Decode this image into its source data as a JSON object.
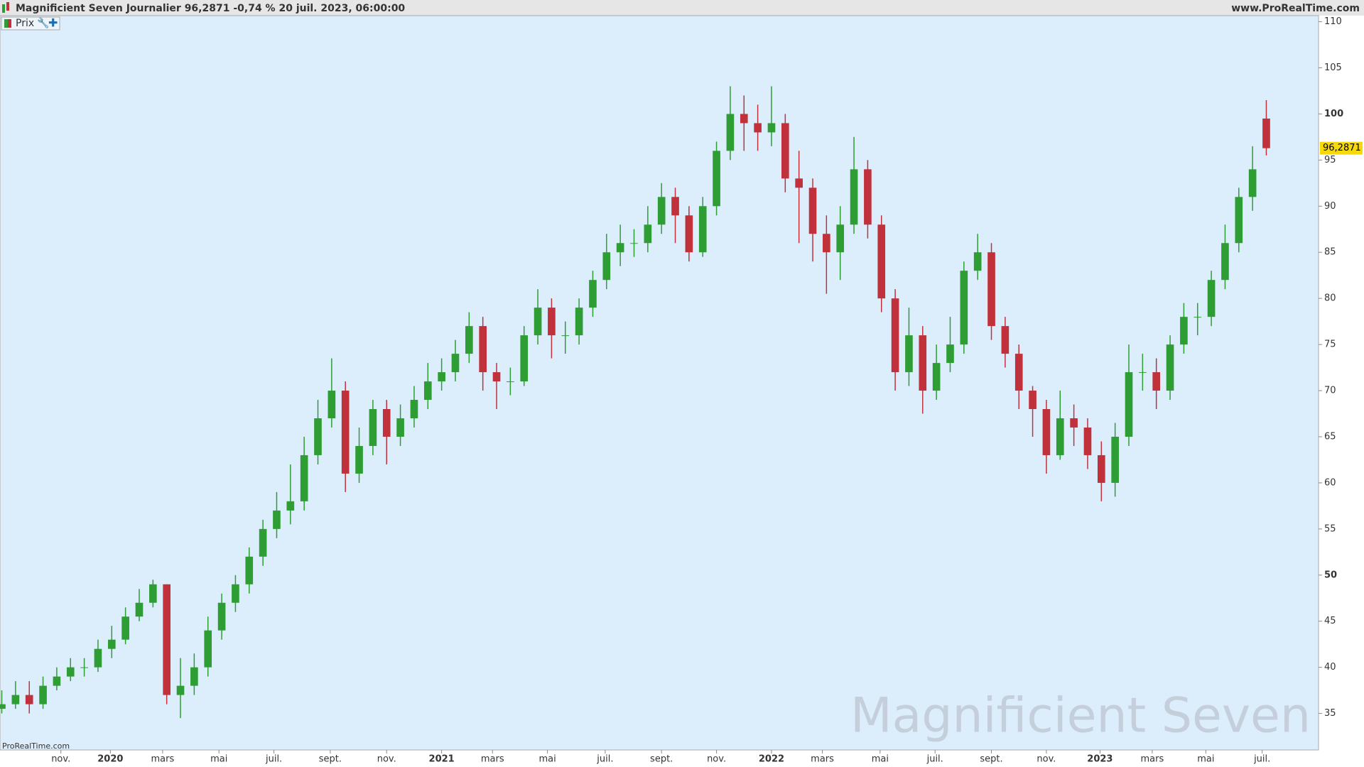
{
  "header": {
    "title": "Magnificient Seven Journalier 96,2871 -0,74 % 20 juil. 2023, 06:00:00",
    "site": "www.ProRealTime.com",
    "indicator": "Prix",
    "footer": "ProRealTime.com",
    "watermark": "Magnificient Seven"
  },
  "chart_data": {
    "type": "candlestick",
    "open": [
      35.5,
      36,
      37,
      36,
      38,
      39,
      40,
      40,
      42,
      43,
      45.5,
      47,
      49,
      37,
      38,
      40,
      44,
      47,
      49,
      52,
      55,
      57,
      58,
      63,
      67,
      70,
      61,
      64,
      68,
      65,
      67,
      69,
      71,
      72,
      74,
      77,
      72,
      71,
      71,
      76,
      79,
      76,
      76,
      79,
      82,
      85,
      86,
      86,
      88,
      91,
      89,
      85,
      90,
      96,
      100,
      99,
      98,
      99,
      93,
      92,
      87,
      85,
      88,
      94,
      88,
      80,
      72,
      76,
      70,
      73,
      75,
      83,
      85,
      77,
      74,
      70,
      68,
      63,
      67,
      66,
      63,
      60,
      65,
      72,
      72,
      70,
      75,
      78,
      78,
      82,
      86,
      91,
      99.5
    ],
    "high": [
      37.5,
      38.5,
      38.5,
      39,
      40,
      41,
      41,
      43,
      44.5,
      46.5,
      48.5,
      49.5,
      49,
      41,
      41.5,
      45.5,
      48,
      50,
      53,
      56,
      59,
      62,
      65,
      69,
      73.5,
      71,
      66,
      69,
      69,
      68.5,
      70.5,
      73,
      73.5,
      75.5,
      78.5,
      78,
      73,
      72.5,
      77,
      81,
      80,
      77.5,
      80,
      83,
      87,
      88,
      87.5,
      90,
      92.5,
      92,
      90,
      91,
      97,
      103,
      102,
      101,
      103,
      100,
      96,
      93,
      89,
      90,
      97.5,
      95,
      89,
      81,
      79,
      77,
      75,
      78,
      84,
      87,
      86,
      78,
      75,
      70.5,
      69,
      70,
      68.5,
      67,
      64.5,
      66.5,
      75,
      74,
      73.5,
      76,
      79.5,
      79.5,
      83,
      88,
      92,
      96.5,
      101.5
    ],
    "low": [
      35,
      35.5,
      35,
      35.5,
      37.5,
      38.5,
      39,
      39.5,
      41,
      42.5,
      45,
      46.5,
      36,
      34.5,
      37,
      39,
      43,
      46,
      48,
      51,
      54,
      55.5,
      57,
      62,
      66,
      59,
      60,
      63,
      62,
      64,
      66,
      68,
      70,
      71,
      73,
      70,
      68,
      69.5,
      70.5,
      75,
      73.5,
      74,
      75,
      78,
      81,
      83.5,
      84.5,
      85,
      87,
      86,
      84,
      84.5,
      89,
      95,
      96,
      96,
      96.5,
      91.5,
      86,
      84,
      80.5,
      82,
      87,
      86.5,
      78.5,
      70,
      70.5,
      67.5,
      69,
      72,
      74,
      82,
      75.5,
      72.5,
      68,
      65,
      61,
      62.5,
      64,
      61.5,
      58,
      58.5,
      64,
      70,
      68,
      69,
      74,
      76,
      77,
      81,
      85,
      89.5,
      95.5
    ],
    "close": [
      36,
      37,
      36,
      38,
      39,
      40,
      40,
      42,
      43,
      45.5,
      47,
      49,
      37,
      38,
      40,
      44,
      47,
      49,
      52,
      55,
      57,
      58,
      63,
      67,
      70,
      61,
      64,
      68,
      65,
      67,
      69,
      71,
      72,
      74,
      77,
      72,
      71,
      71,
      76,
      79,
      76,
      76,
      79,
      82,
      85,
      86,
      86,
      88,
      91,
      89,
      85,
      90,
      96,
      100,
      99,
      98,
      99,
      93,
      92,
      87,
      85,
      88,
      94,
      88,
      80,
      72,
      76,
      70,
      73,
      75,
      83,
      85,
      77,
      74,
      70,
      68,
      63,
      67,
      66,
      63,
      60,
      65,
      72,
      72,
      70,
      75,
      78,
      78,
      82,
      86,
      91,
      94,
      96.2871
    ],
    "up_color": "#2e9e34",
    "down_color": "#c0313b",
    "last_price": {
      "value": 96.2871,
      "label": "96,2871"
    },
    "xlim": [
      -0.13,
      95.8
    ],
    "xticks": [
      {
        "value": 4.3,
        "label": "nov."
      },
      {
        "value": 7.9,
        "label": "2020"
      },
      {
        "value": 11.7,
        "label": "mars"
      },
      {
        "value": 15.8,
        "label": "mai"
      },
      {
        "value": 19.8,
        "label": "juil."
      },
      {
        "value": 23.9,
        "label": "sept."
      },
      {
        "value": 28.0,
        "label": "nov."
      },
      {
        "value": 32.0,
        "label": "2021"
      },
      {
        "value": 35.7,
        "label": "mars"
      },
      {
        "value": 39.7,
        "label": "mai"
      },
      {
        "value": 43.9,
        "label": "juil."
      },
      {
        "value": 48.0,
        "label": "sept."
      },
      {
        "value": 52.0,
        "label": "nov."
      },
      {
        "value": 56.0,
        "label": "2022"
      },
      {
        "value": 59.7,
        "label": "mars"
      },
      {
        "value": 63.9,
        "label": "mai"
      },
      {
        "value": 67.9,
        "label": "juil."
      },
      {
        "value": 72.0,
        "label": "sept."
      },
      {
        "value": 76.0,
        "label": "nov."
      },
      {
        "value": 79.9,
        "label": "2023"
      },
      {
        "value": 83.7,
        "label": "mars"
      },
      {
        "value": 87.6,
        "label": "mai"
      },
      {
        "value": 91.7,
        "label": "juil."
      }
    ],
    "ylim": [
      31.04,
      110.66
    ],
    "yticks": [
      35,
      40,
      45,
      50,
      55,
      60,
      65,
      70,
      75,
      80,
      85,
      90,
      95,
      100,
      105,
      110
    ]
  }
}
